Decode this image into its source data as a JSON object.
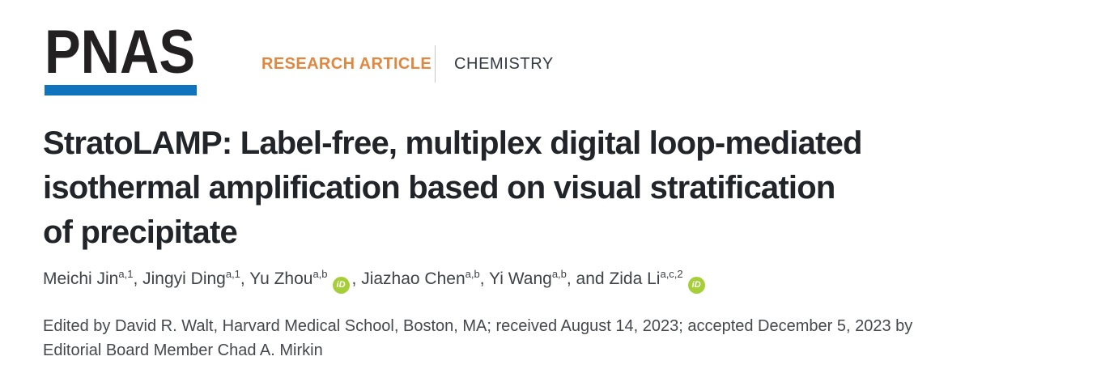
{
  "masthead": {
    "logo": "PNAS",
    "article_type": "RESEARCH ARTICLE",
    "category": "CHEMISTRY"
  },
  "article": {
    "title_lines": [
      "StratoLAMP: Label-free, multiplex digital loop-mediated",
      "isothermal amplification based on visual stratification",
      "of precipitate"
    ],
    "authors": [
      {
        "name": "Meichi Jin",
        "sup": "a,1",
        "orcid": false,
        "sep": ", "
      },
      {
        "name": "Jingyi Ding",
        "sup": "a,1",
        "orcid": false,
        "sep": ", "
      },
      {
        "name": "Yu Zhou",
        "sup": "a,b",
        "orcid": true,
        "sep": ", "
      },
      {
        "name": "Jiazhao Chen",
        "sup": "a,b",
        "orcid": false,
        "sep": ", "
      },
      {
        "name": "Yi Wang",
        "sup": "a,b",
        "orcid": false,
        "sep": ", and "
      },
      {
        "name": "Zida Li",
        "sup": "a,c,2",
        "orcid": true,
        "sep": ""
      }
    ],
    "orcid_icon_text": "iD",
    "edited_lines": [
      "Edited by David R. Walt, Harvard Medical School, Boston, MA; received August 14, 2023; accepted December 5, 2023 by",
      "Editorial Board Member Chad A. Mirkin"
    ]
  },
  "colors": {
    "logo_text": "#232022",
    "logo_bar": "#1074bc",
    "article_type": "#e0883f",
    "category_text": "#333a42",
    "title_text": "#212429",
    "orcid_green": "#a6ce39"
  }
}
